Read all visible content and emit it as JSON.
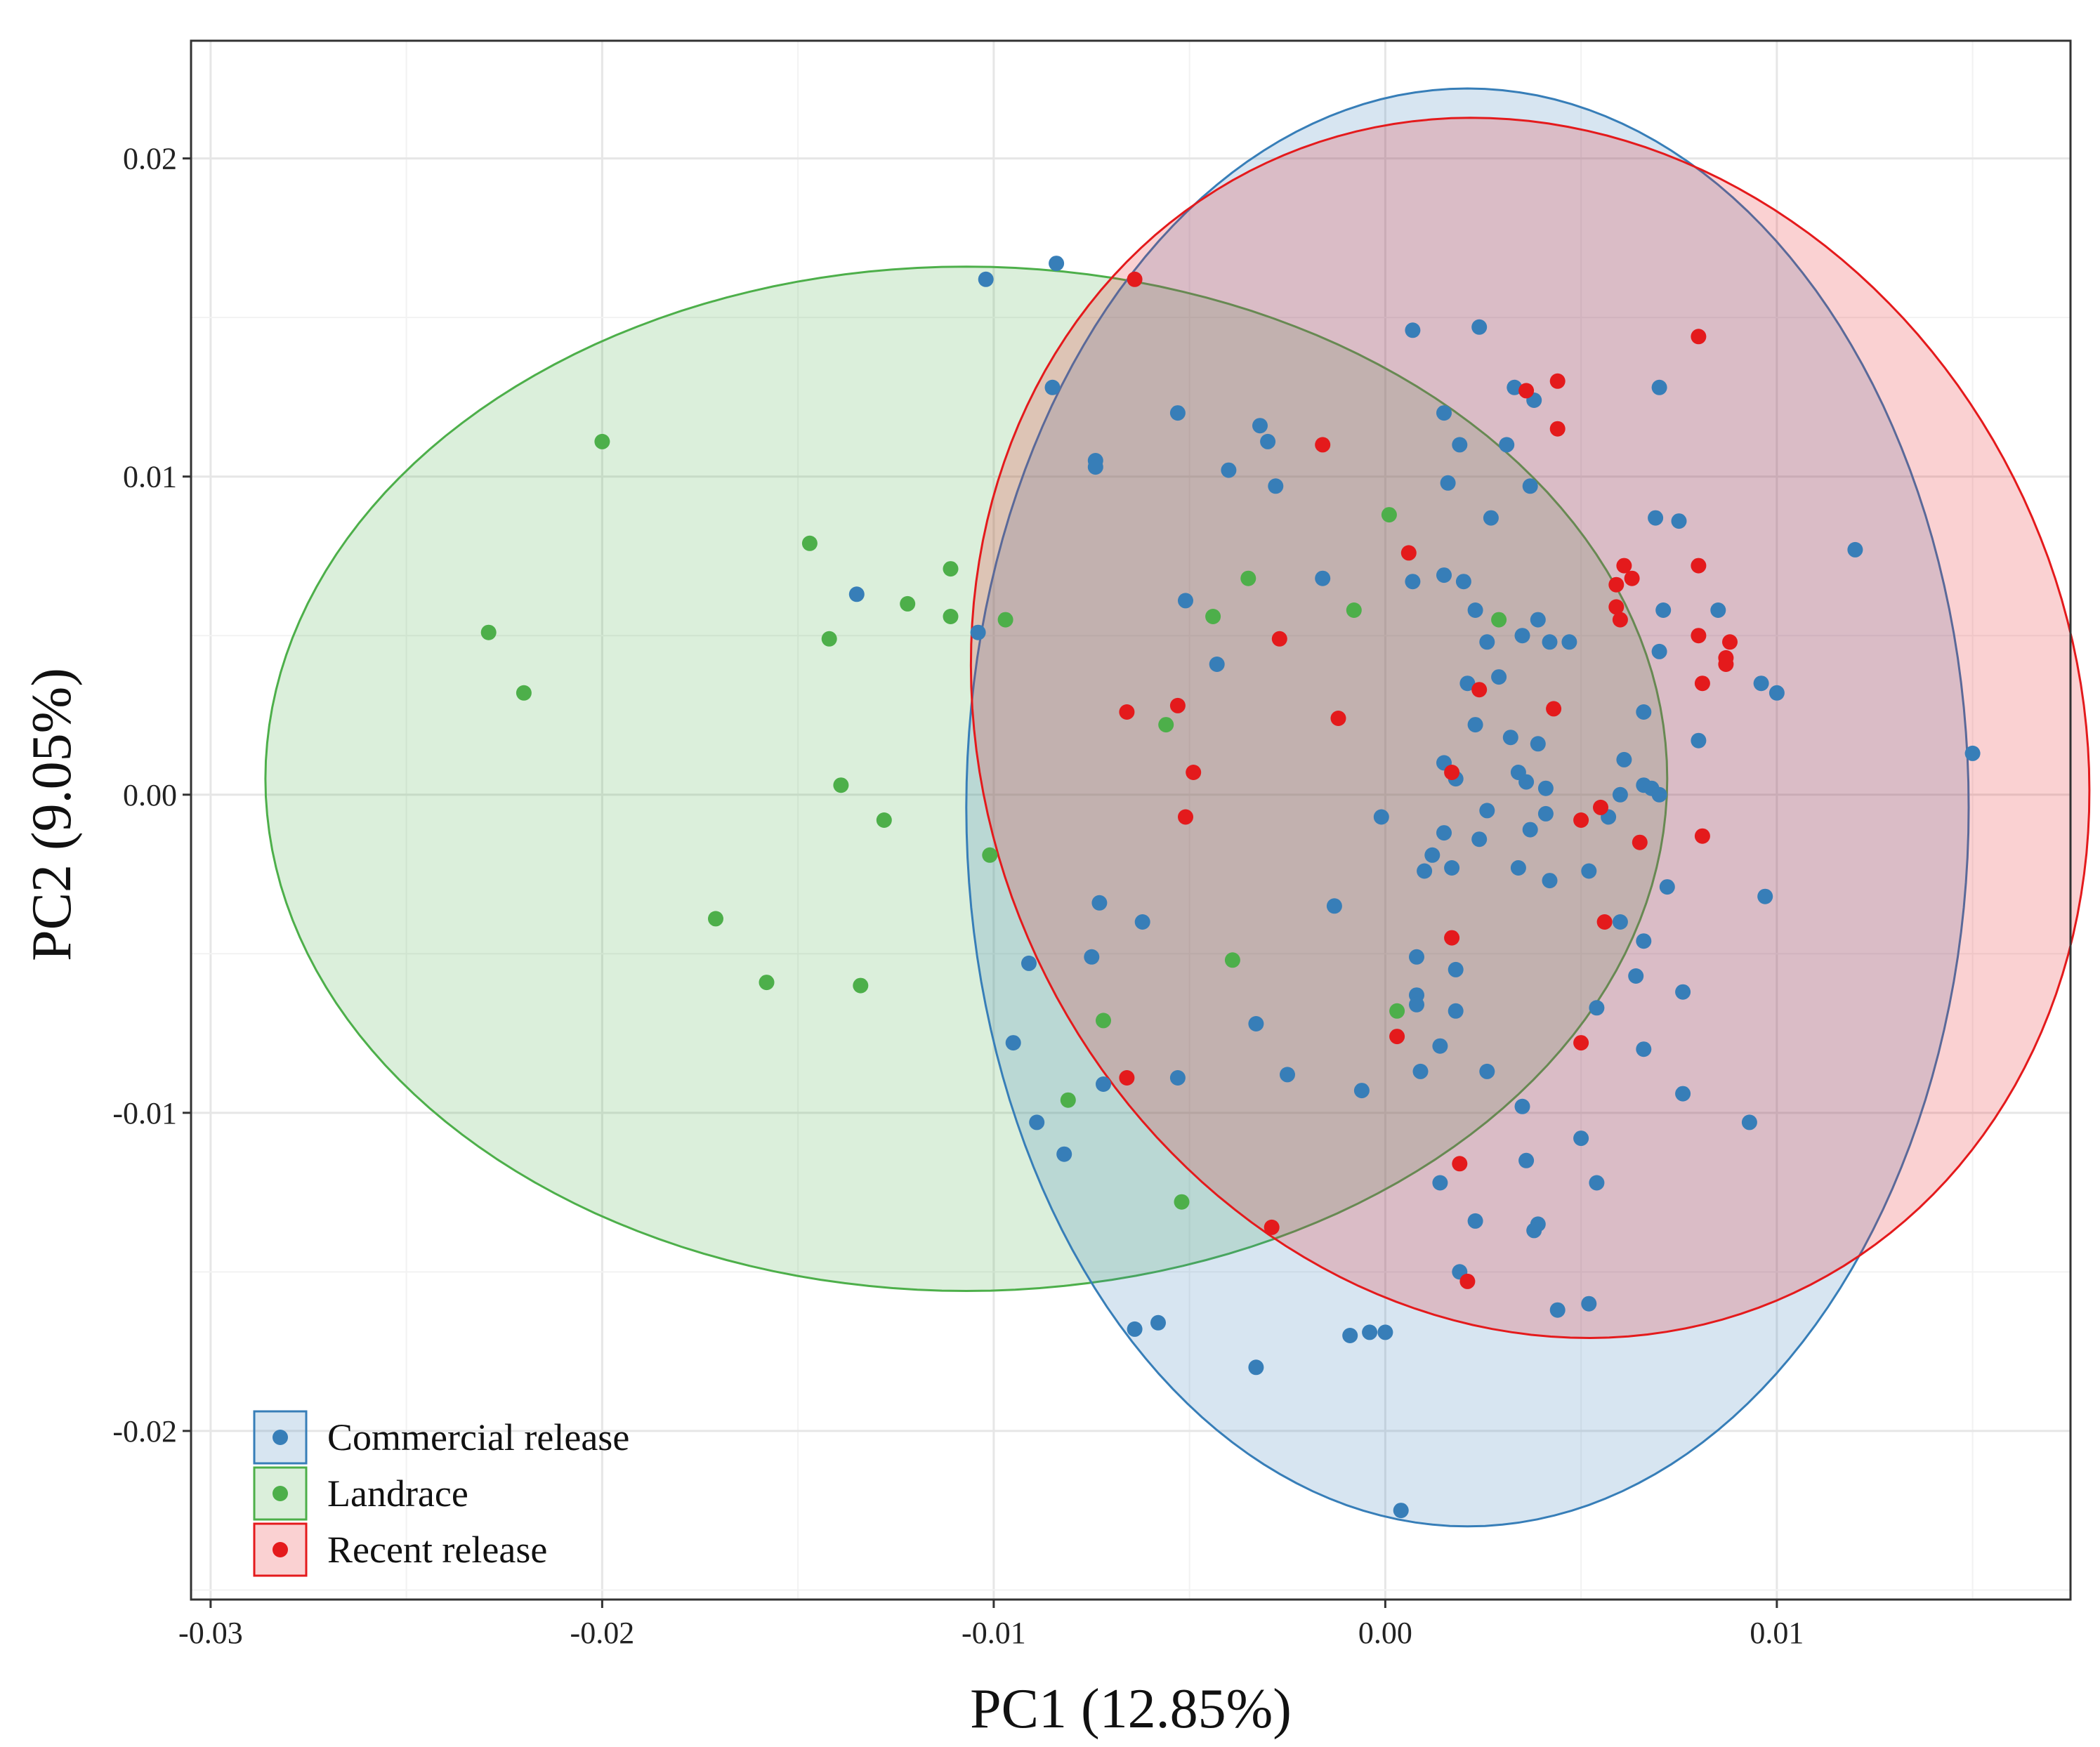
{
  "colors": {
    "commercial": "#377eb8",
    "landrace": "#4daf4a",
    "recent": "#e41a1c"
  },
  "chart_data": {
    "type": "scatter",
    "title": "",
    "xlabel": "PC1 (12.85%)",
    "ylabel": "PC2 (9.05%)",
    "xlim": [
      -0.0305,
      0.0175
    ],
    "ylim": [
      -0.0253,
      0.0237
    ],
    "x_ticks": [
      -0.03,
      -0.02,
      -0.01,
      0.0,
      0.01
    ],
    "x_tick_labels": [
      "-0.03",
      "-0.02",
      "-0.01",
      "0.00",
      "0.01"
    ],
    "y_ticks": [
      -0.02,
      -0.01,
      0.0,
      0.01,
      0.02
    ],
    "y_tick_labels": [
      "-0.02",
      "-0.01",
      "0.00",
      "0.01",
      "0.02"
    ],
    "grid": true,
    "legend_position": "bottom-left",
    "series": [
      {
        "name": "Commercial release",
        "color_key": "commercial",
        "ellipse": {
          "cx": 0.0021,
          "cy": -0.0004,
          "rx": 0.0128,
          "ry": 0.0226,
          "angle": 0
        },
        "points": [
          [
            -0.0102,
            0.0162
          ],
          [
            -0.0084,
            0.0167
          ],
          [
            -0.0085,
            0.0128
          ],
          [
            -0.0074,
            0.0105
          ],
          [
            -0.0074,
            0.0103
          ],
          [
            -0.0135,
            0.0063
          ],
          [
            -0.0104,
            0.0051
          ],
          [
            -0.0053,
            0.012
          ],
          [
            -0.004,
            0.0102
          ],
          [
            -0.0032,
            0.0116
          ],
          [
            -0.003,
            0.0111
          ],
          [
            -0.0028,
            0.0097
          ],
          [
            -0.0051,
            0.0061
          ],
          [
            -0.0043,
            0.0041
          ],
          [
            -0.0016,
            0.0068
          ],
          [
            0.0007,
            0.0146
          ],
          [
            0.0024,
            0.0147
          ],
          [
            0.0015,
            0.012
          ],
          [
            0.0019,
            0.011
          ],
          [
            0.0016,
            0.0098
          ],
          [
            0.0031,
            0.011
          ],
          [
            0.0033,
            0.0128
          ],
          [
            0.0038,
            0.0124
          ],
          [
            0.0027,
            0.0087
          ],
          [
            0.0037,
            0.0097
          ],
          [
            0.0007,
            0.0067
          ],
          [
            0.0015,
            0.0069
          ],
          [
            0.002,
            0.0067
          ],
          [
            0.0023,
            0.0058
          ],
          [
            0.0026,
            0.0048
          ],
          [
            0.0035,
            0.005
          ],
          [
            0.0039,
            0.0055
          ],
          [
            0.0042,
            0.0048
          ],
          [
            0.0047,
            0.0048
          ],
          [
            0.0021,
            0.0035
          ],
          [
            0.0029,
            0.0037
          ],
          [
            0.0023,
            0.0022
          ],
          [
            0.0032,
            0.0018
          ],
          [
            0.0039,
            0.0016
          ],
          [
            0.0015,
            0.001
          ],
          [
            0.0018,
            0.0005
          ],
          [
            0.0034,
            0.0007
          ],
          [
            0.0036,
            0.0004
          ],
          [
            0.0041,
            0.0002
          ],
          [
            -0.0001,
            -0.0007
          ],
          [
            0.0015,
            -0.0012
          ],
          [
            0.0012,
            -0.0019
          ],
          [
            0.0017,
            -0.0023
          ],
          [
            0.001,
            -0.0024
          ],
          [
            0.0024,
            -0.0014
          ],
          [
            0.0026,
            -0.0005
          ],
          [
            0.0037,
            -0.0011
          ],
          [
            0.0041,
            -0.0006
          ],
          [
            0.0034,
            -0.0023
          ],
          [
            0.0042,
            -0.0027
          ],
          [
            0.0052,
            -0.0024
          ],
          [
            0.0057,
            -0.0007
          ],
          [
            0.006,
            0.0
          ],
          [
            0.0061,
            0.0011
          ],
          [
            0.0066,
            0.0003
          ],
          [
            0.0068,
            0.0002
          ],
          [
            0.007,
            0.0
          ],
          [
            0.0066,
            0.0026
          ],
          [
            0.007,
            0.0045
          ],
          [
            0.0071,
            0.0058
          ],
          [
            0.0069,
            0.0087
          ],
          [
            0.0075,
            0.0086
          ],
          [
            0.007,
            0.0128
          ],
          [
            0.008,
            0.0017
          ],
          [
            0.0085,
            0.0058
          ],
          [
            0.0096,
            0.0035
          ],
          [
            0.01,
            0.0032
          ],
          [
            0.012,
            0.0077
          ],
          [
            0.015,
            0.0013
          ],
          [
            0.0097,
            -0.0032
          ],
          [
            0.0072,
            -0.0029
          ],
          [
            0.006,
            -0.004
          ],
          [
            0.0066,
            -0.0046
          ],
          [
            0.0064,
            -0.0057
          ],
          [
            0.0076,
            -0.0062
          ],
          [
            0.0054,
            -0.0067
          ],
          [
            0.0066,
            -0.008
          ],
          [
            0.0076,
            -0.0094
          ],
          [
            0.0093,
            -0.0103
          ],
          [
            -0.0073,
            -0.0034
          ],
          [
            -0.0062,
            -0.004
          ],
          [
            -0.0091,
            -0.0053
          ],
          [
            -0.0075,
            -0.0051
          ],
          [
            -0.0095,
            -0.0078
          ],
          [
            -0.0072,
            -0.0091
          ],
          [
            -0.0053,
            -0.0089
          ],
          [
            -0.0033,
            -0.0072
          ],
          [
            -0.0025,
            -0.0088
          ],
          [
            -0.0013,
            -0.0035
          ],
          [
            -0.0006,
            -0.0093
          ],
          [
            0.0008,
            -0.0051
          ],
          [
            0.0008,
            -0.0063
          ],
          [
            0.0008,
            -0.0066
          ],
          [
            0.0018,
            -0.0055
          ],
          [
            0.0018,
            -0.0068
          ],
          [
            0.0009,
            -0.0087
          ],
          [
            0.0014,
            -0.0079
          ],
          [
            0.0026,
            -0.0087
          ],
          [
            0.0035,
            -0.0098
          ],
          [
            0.0036,
            -0.0115
          ],
          [
            0.005,
            -0.0108
          ],
          [
            0.0054,
            -0.0122
          ],
          [
            0.0014,
            -0.0122
          ],
          [
            0.0023,
            -0.0134
          ],
          [
            0.0039,
            -0.0135
          ],
          [
            0.0038,
            -0.0137
          ],
          [
            0.0019,
            -0.015
          ],
          [
            -0.0089,
            -0.0103
          ],
          [
            -0.0082,
            -0.0113
          ],
          [
            -0.0064,
            -0.0168
          ],
          [
            -0.0058,
            -0.0166
          ],
          [
            -0.0033,
            -0.018
          ],
          [
            -0.0009,
            -0.017
          ],
          [
            -0.0004,
            -0.0169
          ],
          [
            0.0,
            -0.0169
          ],
          [
            0.0044,
            -0.0162
          ],
          [
            0.0052,
            -0.016
          ],
          [
            0.0004,
            -0.0225
          ]
        ]
      },
      {
        "name": "Landrace",
        "color_key": "landrace",
        "ellipse": {
          "cx": -0.0107,
          "cy": 0.0005,
          "rx": 0.0179,
          "ry": 0.0161,
          "angle": 0
        },
        "points": [
          [
            -0.02,
            0.0111
          ],
          [
            -0.0229,
            0.0051
          ],
          [
            -0.022,
            0.0032
          ],
          [
            -0.0147,
            0.0079
          ],
          [
            -0.0142,
            0.0049
          ],
          [
            -0.0122,
            0.006
          ],
          [
            -0.0111,
            0.0071
          ],
          [
            -0.0111,
            0.0056
          ],
          [
            -0.0097,
            0.0055
          ],
          [
            -0.0139,
            0.0003
          ],
          [
            -0.0128,
            -0.0008
          ],
          [
            -0.0101,
            -0.0019
          ],
          [
            -0.0171,
            -0.0039
          ],
          [
            -0.0158,
            -0.0059
          ],
          [
            -0.0134,
            -0.006
          ],
          [
            0.0001,
            0.0088
          ],
          [
            -0.0035,
            0.0068
          ],
          [
            -0.0044,
            0.0056
          ],
          [
            -0.0008,
            0.0058
          ],
          [
            0.0029,
            0.0055
          ],
          [
            -0.0056,
            0.0022
          ],
          [
            -0.0039,
            -0.0052
          ],
          [
            0.0003,
            -0.0068
          ],
          [
            -0.0072,
            -0.0071
          ],
          [
            -0.0081,
            -0.0096
          ],
          [
            -0.0052,
            -0.0128
          ]
        ]
      },
      {
        "name": "Recent release",
        "color_key": "recent",
        "ellipse": {
          "cx": 0.0037,
          "cy": 0.0021,
          "rx": 0.0139,
          "ry": 0.0196,
          "angle": -25
        },
        "points": [
          [
            -0.0064,
            0.0162
          ],
          [
            0.0044,
            0.013
          ],
          [
            0.0036,
            0.0127
          ],
          [
            0.0044,
            0.0115
          ],
          [
            0.008,
            0.0144
          ],
          [
            -0.0016,
            0.011
          ],
          [
            0.0006,
            0.0076
          ],
          [
            0.0061,
            0.0072
          ],
          [
            0.0063,
            0.0068
          ],
          [
            0.0059,
            0.0066
          ],
          [
            0.008,
            0.0072
          ],
          [
            0.0059,
            0.0059
          ],
          [
            0.006,
            0.0055
          ],
          [
            0.008,
            0.005
          ],
          [
            0.0088,
            0.0048
          ],
          [
            0.0087,
            0.0043
          ],
          [
            0.0087,
            0.0041
          ],
          [
            0.0081,
            0.0035
          ],
          [
            -0.0027,
            0.0049
          ],
          [
            0.0024,
            0.0033
          ],
          [
            0.0043,
            0.0027
          ],
          [
            -0.0066,
            0.0026
          ],
          [
            -0.0053,
            0.0028
          ],
          [
            -0.0012,
            0.0024
          ],
          [
            -0.0049,
            0.0007
          ],
          [
            0.0017,
            0.0007
          ],
          [
            -0.0051,
            -0.0007
          ],
          [
            0.005,
            -0.0008
          ],
          [
            0.0055,
            -0.0004
          ],
          [
            0.0065,
            -0.0015
          ],
          [
            0.0081,
            -0.0013
          ],
          [
            0.0056,
            -0.004
          ],
          [
            0.0017,
            -0.0045
          ],
          [
            0.005,
            -0.0078
          ],
          [
            0.0003,
            -0.0076
          ],
          [
            -0.0066,
            -0.0089
          ],
          [
            0.0019,
            -0.0116
          ],
          [
            -0.0029,
            -0.0136
          ],
          [
            0.0021,
            -0.0153
          ]
        ]
      }
    ]
  }
}
